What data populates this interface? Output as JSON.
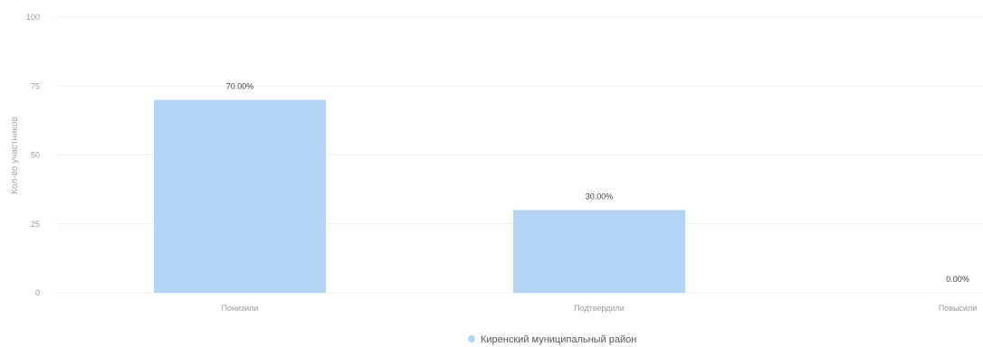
{
  "chart_data": {
    "type": "bar",
    "categories": [
      "Понизили",
      "Подтвердили",
      "Повысили"
    ],
    "series": [
      {
        "name": "Киренский муниципальный район",
        "values": [
          70,
          30,
          0
        ],
        "labels": [
          "70.00%",
          "30.00%",
          "0.00%"
        ],
        "color": "#b3d4f5"
      }
    ],
    "ylabel": "Кол-во участников",
    "ylim": [
      0,
      100
    ],
    "yticks": [
      0,
      25,
      50,
      75,
      100
    ],
    "grid": true,
    "legend": "bottom-center"
  }
}
